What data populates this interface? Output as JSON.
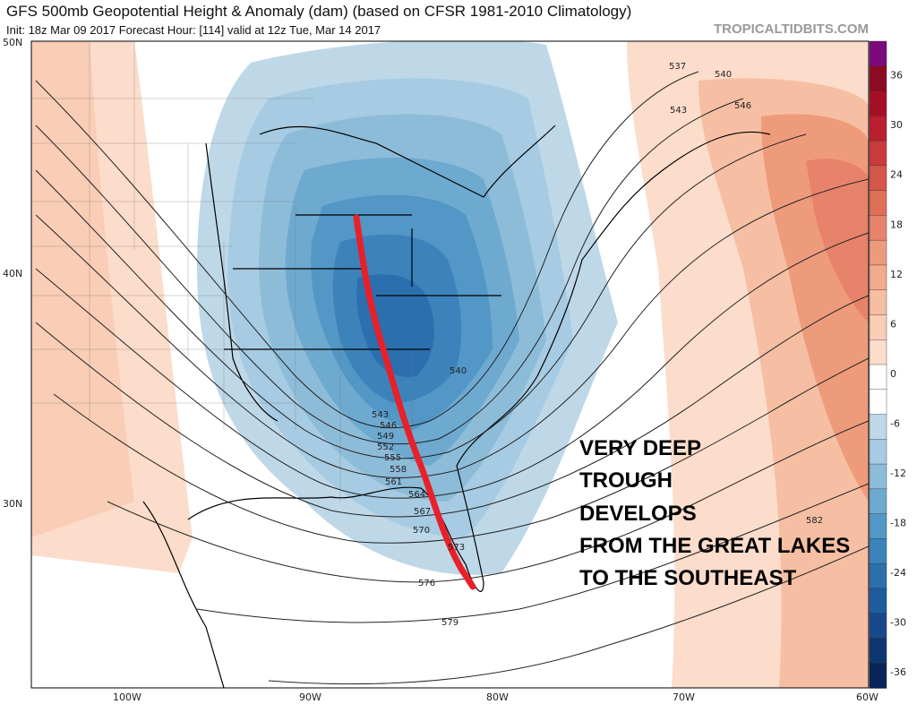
{
  "header": {
    "title": "GFS 500mb Geopotential Height & Anomaly (dam) (based on CFSR 1981-2010 Climatology)",
    "subtitle": "Init: 18z Mar 09 2017   Forecast Hour: [114]   valid at 12z Tue, Mar 14 2017",
    "brand": "TROPICALTIDBITS.COM"
  },
  "map": {
    "lat_labels": [
      "50N",
      "40N",
      "30N"
    ],
    "lon_labels": [
      "100W",
      "90W",
      "80W",
      "70W",
      "60W"
    ],
    "contour_labels": [
      "537",
      "540",
      "543",
      "546",
      "540",
      "543",
      "546",
      "549",
      "552",
      "555",
      "558",
      "561",
      "564",
      "567",
      "570",
      "573",
      "576",
      "579",
      "582"
    ],
    "annotation": [
      "VERY DEEP",
      "TROUGH",
      "DEVELOPS",
      "FROM THE GREAT LAKES",
      "TO THE SOUTHEAST"
    ],
    "annotation_line_color": "#e8202a"
  },
  "colorbar": {
    "labels": [
      "36",
      "30",
      "24",
      "18",
      "12",
      "6",
      "0",
      "-6",
      "-12",
      "-18",
      "-24",
      "-30",
      "-36"
    ],
    "colors": [
      "#7b0a7b",
      "#8c0a22",
      "#a50f26",
      "#bb1e2e",
      "#c93a3a",
      "#d4574a",
      "#df6f57",
      "#e6836a",
      "#ee9b7c",
      "#f2ab8c",
      "#f6bea2",
      "#f9cdb6",
      "#fcdccb",
      "#ffffff",
      "#ffffff",
      "#bfd8e8",
      "#a6cbe2",
      "#8dbcd9",
      "#6ea9d0",
      "#5297c6",
      "#3c83bb",
      "#2b6fae",
      "#1f5c9e",
      "#17498a",
      "#0e3670",
      "#0a2358"
    ]
  }
}
